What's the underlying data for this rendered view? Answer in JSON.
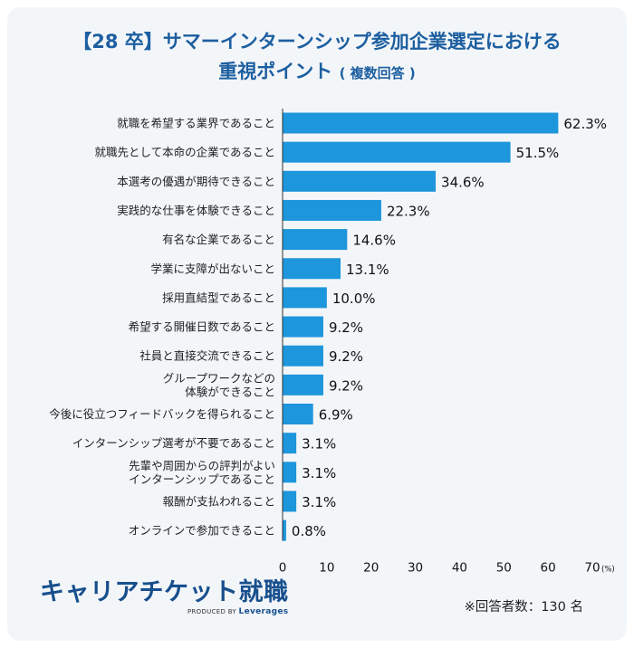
{
  "header": {
    "title_line1": "【28 卒】サマーインターンシップ参加企業選定における",
    "title_line2_main": "重視ポイント",
    "title_line2_sub": "( 複数回答 )"
  },
  "chart_data": {
    "type": "bar",
    "orientation": "horizontal",
    "title": "【28 卒】サマーインターンシップ参加企業選定における 重視ポイント ( 複数回答 )",
    "categories": [
      "就職を希望する業界であること",
      "就職先として本命の企業であること",
      "本選考の優遇が期待できること",
      "実践的な仕事を体験できること",
      "有名な企業であること",
      "学業に支障が出ないこと",
      "採用直結型であること",
      "希望する開催日数であること",
      "社員と直接交流できること",
      "グループワークなどの\n体験ができること",
      "今後に役立つフィードバックを得られること",
      "インターンシップ選考が不要であること",
      "先輩や周囲からの評判がよい\nインターンシップであること",
      "報酬が支払われること",
      "オンラインで参加できること"
    ],
    "values": [
      62.3,
      51.5,
      34.6,
      22.3,
      14.6,
      13.1,
      10.0,
      9.2,
      9.2,
      9.2,
      6.9,
      3.1,
      3.1,
      3.1,
      0.8
    ],
    "value_labels": [
      "62.3%",
      "51.5%",
      "34.6%",
      "22.3%",
      "14.6%",
      "13.1%",
      "10.0%",
      "9.2%",
      "9.2%",
      "9.2%",
      "6.9%",
      "3.1%",
      "3.1%",
      "3.1%",
      "0.8%"
    ],
    "xlim": [
      0,
      70
    ],
    "x_ticks": [
      0,
      10,
      20,
      30,
      40,
      50,
      60,
      70
    ],
    "x_unit_label": "(%)",
    "grid": false,
    "bar_color": "#1e96dc"
  },
  "footer": {
    "brand": "キャリアチケット就職",
    "byline_prefix": "PRODUCED BY",
    "byline_company": "Leverages",
    "respondents_note": "※回答者数：130 名"
  }
}
